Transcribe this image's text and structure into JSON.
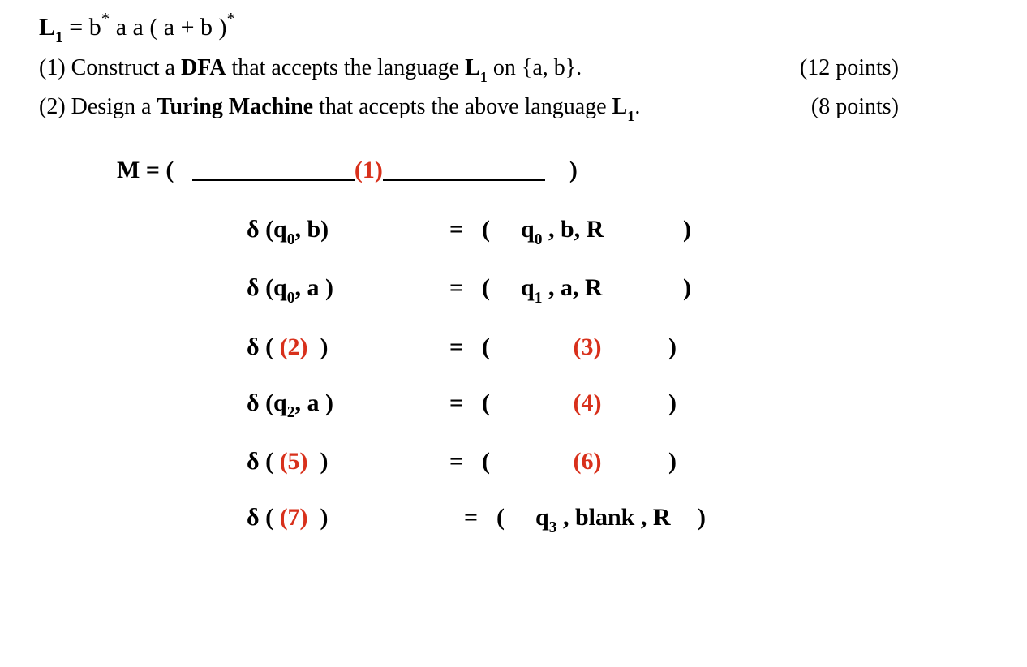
{
  "colors": {
    "text": "#000000",
    "accent_red": "#d8301b",
    "background": "#ffffff"
  },
  "typography": {
    "font_family": "Times New Roman",
    "base_size_pt": 22,
    "bold_weight": 700
  },
  "language_def": {
    "lhs_label": "L",
    "lhs_sub": "1",
    "eq": " = ",
    "rhs_plain": "b* a a ( a + b )*",
    "rhs_parts": [
      {
        "t": "b",
        "sup": "*"
      },
      {
        "t": " a a ( a + b )",
        "sup": "*"
      }
    ]
  },
  "prompts": [
    {
      "num": "(1)",
      "pre": "Construct a ",
      "bold": "DFA",
      "post": " that accepts the  language ",
      "lang": "L",
      "lang_sub": "1",
      "tail": " on {a, b}.",
      "points": "(12 points)"
    },
    {
      "num": "(2)",
      "pre": "Design a ",
      "bold": "Turing Machine",
      "post": " that accepts the above language  ",
      "lang": "L",
      "lang_sub": "1",
      "tail": ".",
      "points": "(8 points)"
    }
  ],
  "tm_header": {
    "M": "M = (",
    "blank_marker": "(1)",
    "close": ")"
  },
  "transitions": [
    {
      "left_pre": "δ (q",
      "left_sub": "0",
      "left_post": ", b)",
      "left_red": false,
      "right": "q0 , b, R",
      "right_sub_idx": 0,
      "right_red": false
    },
    {
      "left_pre": "δ (q",
      "left_sub": "0",
      "left_post": ", a )",
      "left_red": false,
      "right": "q1 , a, R",
      "right_sub_idx": 0,
      "right_red": false
    },
    {
      "left_full_red": "(2)",
      "left_pre": "δ ( ",
      "left_post": " )",
      "right_full_red": "(3)"
    },
    {
      "left_pre": "δ (q",
      "left_sub": "2",
      "left_post": ",  a  )",
      "left_red": false,
      "right_full_red": "(4)"
    },
    {
      "left_full_red": "(5)",
      "left_pre": "δ ( ",
      "left_post": " )",
      "right_full_red": "(6)"
    },
    {
      "left_full_red": "(7)",
      "left_pre": "δ ( ",
      "left_post": " )",
      "right": "q3 , blank , R",
      "right_sub_idx": 0,
      "right_red": false,
      "eq_shift": true
    }
  ]
}
